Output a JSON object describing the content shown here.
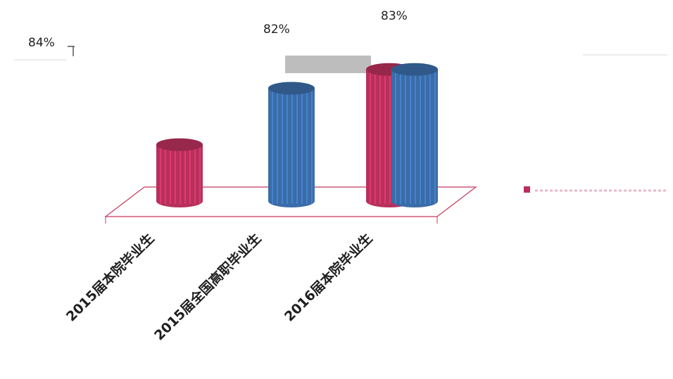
{
  "chart_data": {
    "type": "bar",
    "style": "3d-cylinder",
    "categories": [
      "2015届本院毕业生",
      "2015届全国高职毕业生",
      "2016届本院毕业生"
    ],
    "axis_top_label": "84%",
    "series": [
      {
        "color": "#b8305c",
        "values": [
          79,
          null,
          83
        ]
      },
      {
        "color": "#3a6ca8",
        "values": [
          null,
          82,
          83
        ]
      }
    ],
    "data_labels": [
      "",
      "82%",
      "83%"
    ],
    "ylim": [
      76,
      84
    ],
    "legend_position": "right",
    "colors": {
      "series_a": "#b8305c",
      "series_b": "#3a6ca8",
      "connector": "#bdbdbd",
      "floor": "#c8385e"
    }
  }
}
